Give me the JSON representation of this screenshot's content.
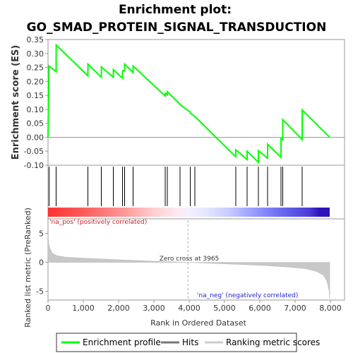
{
  "chart_data": {
    "type": "line",
    "title_line1": "Enrichment plot:",
    "title_line2": "GO_SMAD_PROTEIN_SIGNAL_TRANSDUCTION",
    "es_panel": {
      "ylabel": "Enrichment score (ES)",
      "ylim": [
        -0.1,
        0.35
      ],
      "yticks": [
        "-0.10",
        "-0.05",
        "0.00",
        "0.05",
        "0.10",
        "0.15",
        "0.20",
        "0.25",
        "0.30",
        "0.35"
      ],
      "series": [
        {
          "name": "Enrichment profile",
          "color": "#00ff00",
          "x": [
            0,
            30,
            230,
            232,
            1130,
            1132,
            1510,
            1512,
            1850,
            1852,
            2110,
            2112,
            2170,
            2172,
            2410,
            2412,
            3320,
            3322,
            3380,
            3382,
            3740,
            3760,
            4030,
            4050,
            4160,
            4180,
            5320,
            5322,
            5640,
            5642,
            5960,
            5962,
            6220,
            6222,
            6600,
            6602,
            6650,
            6652,
            7200,
            7202,
            7980
          ],
          "y": [
            0.0,
            0.255,
            0.235,
            0.33,
            0.22,
            0.262,
            0.215,
            0.252,
            0.215,
            0.242,
            0.212,
            0.238,
            0.24,
            0.262,
            0.232,
            0.255,
            0.148,
            0.158,
            0.152,
            0.163,
            0.118,
            0.115,
            0.09,
            0.085,
            0.075,
            0.072,
            -0.07,
            -0.045,
            -0.08,
            -0.05,
            -0.09,
            -0.048,
            -0.075,
            -0.025,
            -0.072,
            -0.005,
            -0.01,
            0.063,
            -0.008,
            0.098,
            0.0
          ]
        }
      ]
    },
    "hits_panel": {
      "hits": [
        30,
        230,
        1130,
        1510,
        1850,
        2110,
        2170,
        2410,
        3320,
        3380,
        3740,
        4030,
        4160,
        5320,
        5640,
        5960,
        6220,
        6600,
        6650,
        7200
      ],
      "gradient_stops": [
        {
          "x": 0,
          "color": "#ff3030"
        },
        {
          "x": 1300,
          "color": "#ff6a6a"
        },
        {
          "x": 2200,
          "color": "#ff9a9a"
        },
        {
          "x": 3000,
          "color": "#ffcfd0"
        },
        {
          "x": 3600,
          "color": "#ffe6ee"
        },
        {
          "x": 3965,
          "color": "#f4f0ff"
        },
        {
          "x": 4500,
          "color": "#e4e6ff"
        },
        {
          "x": 5100,
          "color": "#c8ccff"
        },
        {
          "x": 5800,
          "color": "#9a9eff"
        },
        {
          "x": 6600,
          "color": "#6a6af2"
        },
        {
          "x": 7400,
          "color": "#4a3bd8"
        },
        {
          "x": 7700,
          "color": "#2c14b8"
        },
        {
          "x": 7980,
          "color": "#2c14b8"
        }
      ]
    },
    "rank_panel": {
      "ylabel": "Ranked list metric (PreRanked)",
      "ylim": [
        -6.5,
        7.5
      ],
      "yticks": [
        "-5",
        "0",
        "5"
      ],
      "zero_cross_x": 3965,
      "zero_cross_label": "Zero cross at 3965",
      "pos_label": "'na_pos' (positively correlated)",
      "neg_label": "'na_neg' (negatively correlated)",
      "metric_x": [
        0,
        20,
        60,
        120,
        250,
        500,
        1000,
        2000,
        3000,
        3965,
        5000,
        6000,
        6800,
        7300,
        7600,
        7800,
        7900,
        7960,
        7980
      ],
      "metric_y": [
        4.6,
        3.2,
        2.3,
        1.6,
        1.15,
        0.9,
        0.72,
        0.45,
        0.2,
        0.0,
        -0.25,
        -0.5,
        -0.8,
        -1.1,
        -1.55,
        -2.2,
        -3.2,
        -4.8,
        -6.2
      ]
    },
    "xaxis": {
      "xlabel": "Rank in Ordered Dataset",
      "xlim": [
        0,
        8400
      ],
      "xticks": [
        "0",
        "1,000",
        "2,000",
        "3,000",
        "4,000",
        "5,000",
        "6,000",
        "7,000",
        "8,000"
      ],
      "xtick_values": [
        0,
        1000,
        2000,
        3000,
        4000,
        5000,
        6000,
        7000,
        8000
      ]
    },
    "legend": {
      "placement": "bottom",
      "entries": [
        {
          "label": "Enrichment profile",
          "color": "#00ff00"
        },
        {
          "label": "Hits",
          "color": "#777777"
        },
        {
          "label": "Ranking metric scores",
          "color": "#cccccc"
        }
      ]
    }
  }
}
